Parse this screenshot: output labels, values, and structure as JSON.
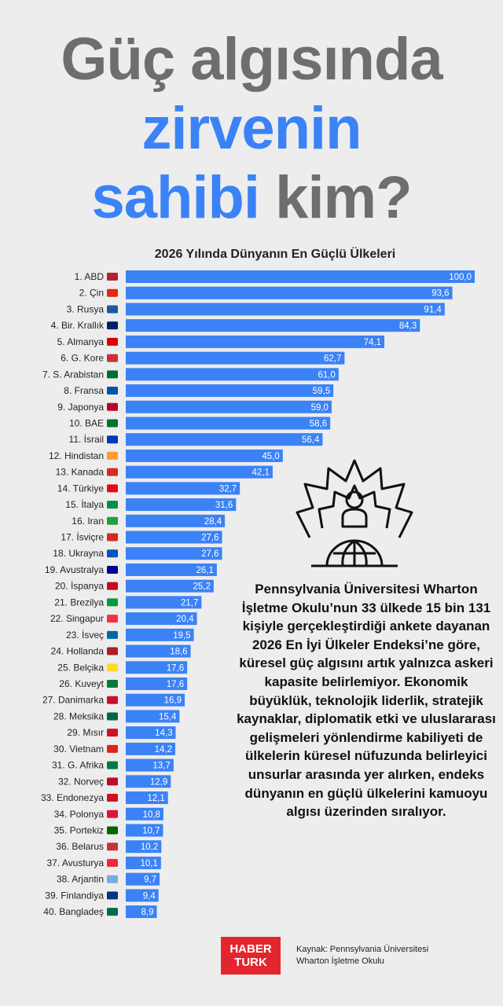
{
  "header": {
    "line1": "Güç algısında",
    "line2": "zirvenin",
    "line3_blue": "sahibi",
    "line3_dark": " kim?"
  },
  "chart_data": {
    "type": "bar",
    "orientation": "horizontal",
    "title": "2026 Yılında Dünyanın En Güçlü Ülkeleri",
    "bar_color": "#3b82f6",
    "categories": [
      "1. ABD",
      "2. Çin",
      "3. Rusya",
      "4. Bir. Krallık",
      "5. Almanya",
      "6. G. Kore",
      "7. S. Arabistan",
      "8. Fransa",
      "9. Japonya",
      "10. BAE",
      "11. İsrail",
      "12. Hindistan",
      "13. Kanada",
      "14. Türkiye",
      "15. İtalya",
      "16. Iran",
      "17. İsviçre",
      "18. Ukrayna",
      "19. Avustralya",
      "20. İspanya",
      "21. Brezilya",
      "22. Singapur",
      "23. İsveç",
      "24. Hollanda",
      "25. Belçika",
      "26. Kuveyt",
      "27. Danimarka",
      "28. Meksika",
      "29. Mısır",
      "30. Vietnam",
      "31. G. Afrika",
      "32. Norveç",
      "33. Endonezya",
      "34. Polonya",
      "35. Portekiz",
      "36. Belarus",
      "37. Avusturya",
      "38. Arjantin",
      "39. Finlandiya",
      "40. Bangladeş"
    ],
    "values": [
      100.0,
      93.6,
      91.4,
      84.3,
      74.1,
      62.7,
      61.0,
      59.5,
      59.0,
      58.6,
      56.4,
      45.0,
      42.1,
      32.7,
      31.6,
      28.4,
      27.6,
      27.6,
      26.1,
      25.2,
      21.7,
      20.4,
      19.5,
      18.6,
      17.6,
      17.6,
      16.9,
      15.4,
      14.3,
      14.2,
      13.7,
      12.9,
      12.1,
      10.8,
      10.7,
      10.2,
      10.1,
      9.7,
      9.4,
      8.9
    ],
    "value_labels": [
      "100,0",
      "93,6",
      "91,4",
      "84,3",
      "74,1",
      "62,7",
      "61,0",
      "59,5",
      "59,0",
      "58,6",
      "56,4",
      "45,0",
      "42,1",
      "32,7",
      "31,6",
      "28,4",
      "27,6",
      "27,6",
      "26,1",
      "25,2",
      "21,7",
      "20,4",
      "19,5",
      "18,6",
      "17,6",
      "17,6",
      "16,9",
      "15,4",
      "14,3",
      "14,2",
      "13,7",
      "12,9",
      "12,1",
      "10,8",
      "10,7",
      "10,2",
      "10,1",
      "9,7",
      "9,4",
      "8,9"
    ],
    "flag_colors": [
      "#b22234",
      "#de2910",
      "#1c57a5",
      "#012169",
      "#dd0000",
      "#cd2e3a",
      "#006c35",
      "#0055a4",
      "#bc002d",
      "#00732f",
      "#0038b8",
      "#ff9933",
      "#d52b1e",
      "#e30a17",
      "#009246",
      "#239f40",
      "#d52b1e",
      "#0057b7",
      "#00008b",
      "#c60b1e",
      "#009c3b",
      "#ef3340",
      "#006aa7",
      "#ae1c28",
      "#fdda24",
      "#007a3d",
      "#c8102e",
      "#006847",
      "#ce1126",
      "#da251d",
      "#007a4d",
      "#ba0c2f",
      "#ce1126",
      "#dc143c",
      "#006600",
      "#c8313e",
      "#ed2939",
      "#74acdf",
      "#003580",
      "#006a4e"
    ],
    "xlim": [
      0,
      100
    ]
  },
  "description": "Pennsylvania Üniversitesi Wharton İşletme Okulu’nun 33 ülkede 15 bin 131 kişiyle gerçekleştirdiği ankete dayanan 2026 En İyi Ülkeler Endeksi’ne göre, küresel güç algısını artık yalnızca askeri kapasite belirlemiyor. Ekonomik büyüklük, teknolojik liderlik, stratejik kaynaklar, diplomatik etki ve uluslararası gelişmeleri yönlendirme kabiliyeti de ülkelerin küresel nüfuzunda belirleyici unsurlar arasında yer alırken, endeks dünyanın en güçlü ülkelerini kamuoyu algısı üzerinden sıralıyor.",
  "brand": {
    "line1": "HABER",
    "line2": "TURK"
  },
  "source": {
    "line1": "Kaynak: Pennsylvania Üniversitesi",
    "line2": "Wharton İşletme Okulu"
  },
  "icons": {
    "emblem": "globe-person-crown-icon"
  }
}
